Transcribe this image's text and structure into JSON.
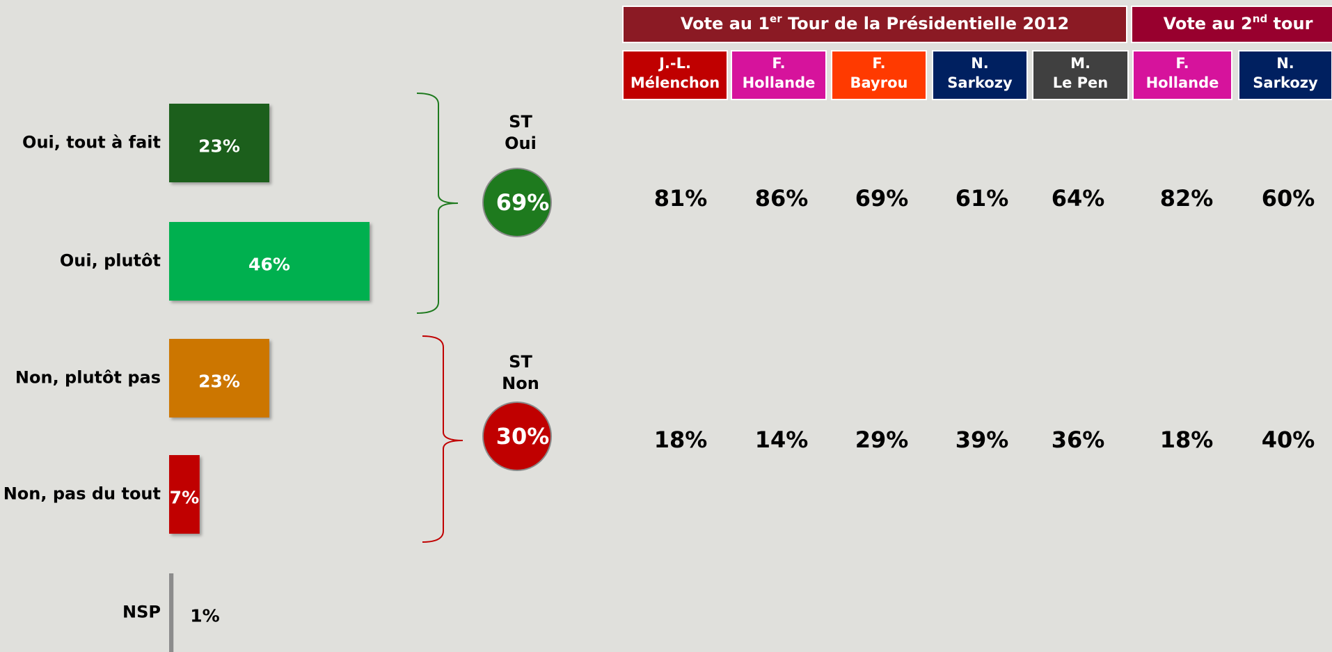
{
  "chart_data": {
    "type": "bar",
    "orientation": "horizontal",
    "categories": [
      "Oui, tout à fait",
      "Oui, plutôt",
      "Non, plutôt pas",
      "Non, pas du tout",
      "NSP"
    ],
    "values": [
      23,
      46,
      23,
      7,
      1
    ],
    "value_labels": [
      "23%",
      "46%",
      "23%",
      "7%",
      "1%"
    ],
    "colors": [
      "#1a5e1f",
      "#00b050",
      "#cc7600",
      "#c00000",
      "#8c8c8c"
    ]
  },
  "subtotals": [
    {
      "title": [
        "ST",
        "Oui"
      ],
      "value": "69%",
      "color": "#1e7a1e"
    },
    {
      "title": [
        "ST",
        "Non"
      ],
      "value": "30%",
      "color": "#c00000"
    }
  ],
  "table": {
    "header_groups": [
      {
        "text": "Vote au 1",
        "sup": "er",
        "rest": " Tour  de la Présidentielle 2012",
        "color": "#8b1a24"
      },
      {
        "text": "Vote au 2",
        "sup": "nd",
        "rest": " tour",
        "color": "#98002e"
      }
    ],
    "columns": [
      {
        "name": [
          "J.-L.",
          "Mélenchon"
        ],
        "color": "#c00000"
      },
      {
        "name": [
          "F.",
          "Hollande"
        ],
        "color": "#d6139c"
      },
      {
        "name": [
          "F.",
          "Bayrou"
        ],
        "color": "#ff3a00"
      },
      {
        "name": [
          "N.",
          "Sarkozy"
        ],
        "color": "#002060"
      },
      {
        "name": [
          "M.",
          "Le Pen"
        ],
        "color": "#404040"
      },
      {
        "name": [
          "F.",
          "Hollande"
        ],
        "color": "#d6139c"
      },
      {
        "name": [
          "N.",
          "Sarkozy"
        ],
        "color": "#002060"
      }
    ],
    "rows": [
      [
        "81%",
        "86%",
        "69%",
        "61%",
        "64%",
        "82%",
        "60%"
      ],
      [
        "18%",
        "14%",
        "29%",
        "39%",
        "36%",
        "18%",
        "40%"
      ]
    ]
  }
}
